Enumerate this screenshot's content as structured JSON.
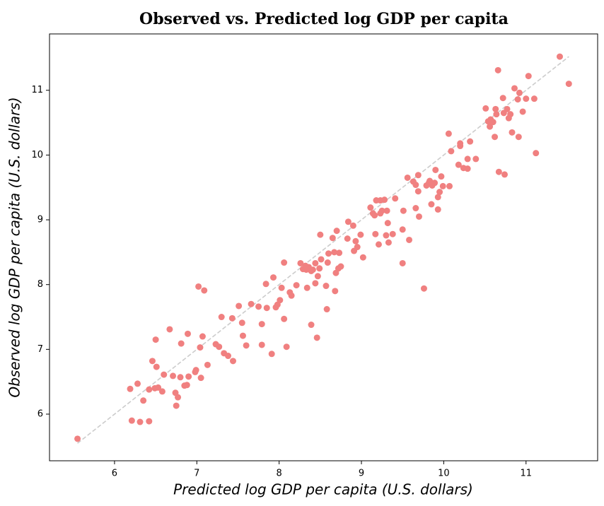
{
  "chart_data": {
    "type": "scatter",
    "title": "Observed vs. Predicted log GDP per capita",
    "x_label": "Predicted log GDP per capita (U.S. dollars)",
    "y_label": "Observed log GDP per capita (U.S. dollars)",
    "color": "#f08080",
    "xlim": [
      5.21,
      11.87
    ],
    "ylim": [
      5.28,
      11.87
    ],
    "xticks": [
      6,
      7,
      8,
      9,
      10,
      11
    ],
    "yticks": [
      6,
      7,
      8,
      9,
      10,
      11
    ],
    "reference_line": {
      "x": [
        5.55,
        11.52
      ],
      "y": [
        5.55,
        11.52
      ],
      "color": "#cccccc"
    },
    "x": [
      5.55,
      6.19,
      6.28,
      6.21,
      6.31,
      6.42,
      6.35,
      6.42,
      6.49,
      6.53,
      6.58,
      6.6,
      6.46,
      6.51,
      6.5,
      6.67,
      6.71,
      6.74,
      6.77,
      6.75,
      6.8,
      6.81,
      6.85,
      6.88,
      6.89,
      6.9,
      6.98,
      6.99,
      7.04,
      7.05,
      7.07,
      7.02,
      7.09,
      7.13,
      7.23,
      7.27,
      7.3,
      7.33,
      7.38,
      7.43,
      7.44,
      7.51,
      7.55,
      7.56,
      7.6,
      7.66,
      7.75,
      7.79,
      7.79,
      7.84,
      7.85,
      7.91,
      7.93,
      7.96,
      7.98,
      8.01,
      8.03,
      8.06,
      8.06,
      8.09,
      8.13,
      8.15,
      8.21,
      8.26,
      8.29,
      8.32,
      8.33,
      8.34,
      8.36,
      8.39,
      8.41,
      8.39,
      8.44,
      8.44,
      8.46,
      8.47,
      8.49,
      8.5,
      8.51,
      8.57,
      8.58,
      8.59,
      8.6,
      8.65,
      8.67,
      8.68,
      8.69,
      8.7,
      8.72,
      8.73,
      8.75,
      8.83,
      8.84,
      8.9,
      8.91,
      8.95,
      8.93,
      8.99,
      9.02,
      9.11,
      9.14,
      9.16,
      9.17,
      9.18,
      9.21,
      9.23,
      9.23,
      9.25,
      9.28,
      9.3,
      9.31,
      9.32,
      9.33,
      9.38,
      9.41,
      9.5,
      9.5,
      9.51,
      9.56,
      9.58,
      9.63,
      9.66,
      9.66,
      9.69,
      9.69,
      9.7,
      9.76,
      9.79,
      9.82,
      9.83,
      9.85,
      9.86,
      9.89,
      9.9,
      9.93,
      9.93,
      9.95,
      9.97,
      9.99,
      10.06,
      10.07,
      10.09,
      10.18,
      10.2,
      10.2,
      10.24,
      10.29,
      10.29,
      10.32,
      10.39,
      10.51,
      10.54,
      10.56,
      10.57,
      10.6,
      10.62,
      10.63,
      10.64,
      10.66,
      10.67,
      10.72,
      10.73,
      10.74,
      10.77,
      10.79,
      10.81,
      10.83,
      10.86,
      10.9,
      10.91,
      10.92,
      10.96,
      11.0,
      11.03,
      11.1,
      11.12,
      11.41,
      11.52
    ],
    "y": [
      5.62,
      6.39,
      6.47,
      5.9,
      5.88,
      5.89,
      6.21,
      6.38,
      6.4,
      6.41,
      6.35,
      6.61,
      6.82,
      6.73,
      7.15,
      7.31,
      6.59,
      6.33,
      6.26,
      6.13,
      6.57,
      7.09,
      6.44,
      6.45,
      7.24,
      6.58,
      6.65,
      6.68,
      7.03,
      6.56,
      7.2,
      7.97,
      7.91,
      6.76,
      7.08,
      7.04,
      7.5,
      6.94,
      6.9,
      7.48,
      6.82,
      7.67,
      7.41,
      7.21,
      7.06,
      7.7,
      7.66,
      7.39,
      7.07,
      8.01,
      7.64,
      6.93,
      8.11,
      7.65,
      7.69,
      7.76,
      7.95,
      8.34,
      7.47,
      7.04,
      7.88,
      7.83,
      7.99,
      8.33,
      8.24,
      8.29,
      8.23,
      7.95,
      8.27,
      8.21,
      8.23,
      7.38,
      8.33,
      8.02,
      7.18,
      8.13,
      8.25,
      8.77,
      8.39,
      7.98,
      7.62,
      8.34,
      8.48,
      8.72,
      8.5,
      7.9,
      8.18,
      8.83,
      8.25,
      8.49,
      8.28,
      8.71,
      8.97,
      8.91,
      8.52,
      8.58,
      8.67,
      8.77,
      8.42,
      9.19,
      9.1,
      9.07,
      8.78,
      9.3,
      8.62,
      9.3,
      9.1,
      9.14,
      9.31,
      8.76,
      9.14,
      8.95,
      8.65,
      8.78,
      9.33,
      8.85,
      8.33,
      9.14,
      9.65,
      8.69,
      9.59,
      9.54,
      9.18,
      9.44,
      9.69,
      9.05,
      7.94,
      9.53,
      9.57,
      9.6,
      9.24,
      9.53,
      9.57,
      9.77,
      9.16,
      9.35,
      9.43,
      9.67,
      9.52,
      10.33,
      9.52,
      10.06,
      9.85,
      10.14,
      10.18,
      9.8,
      9.94,
      9.79,
      10.21,
      9.94,
      10.72,
      10.52,
      10.44,
      10.55,
      10.51,
      10.28,
      10.71,
      10.63,
      11.31,
      9.74,
      10.88,
      10.65,
      9.7,
      10.71,
      10.57,
      10.63,
      10.35,
      11.03,
      10.86,
      10.28,
      10.96,
      10.67,
      10.87,
      11.22,
      10.87,
      10.03,
      11.52,
      11.1
    ]
  }
}
